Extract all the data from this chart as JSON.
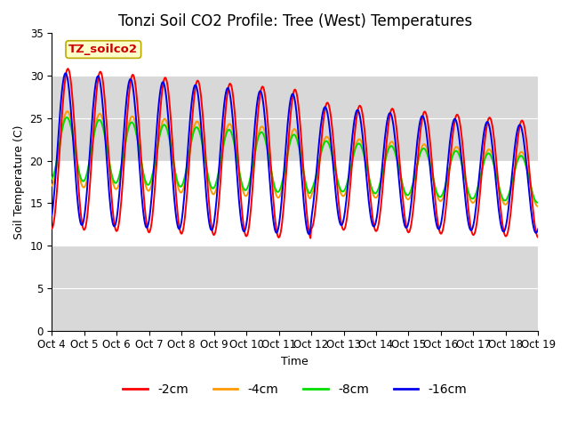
{
  "title": "Tonzi Soil CO2 Profile: Tree (West) Temperatures",
  "xlabel": "Time",
  "ylabel": "Soil Temperature (C)",
  "ylim": [
    0,
    35
  ],
  "xlim": [
    0,
    15
  ],
  "yticks": [
    0,
    5,
    10,
    15,
    20,
    25,
    30,
    35
  ],
  "xtick_labels": [
    "Oct 4",
    "Oct 5",
    "Oct 6",
    "Oct 7",
    "Oct 8",
    "Oct 9",
    "Oct 10",
    "Oct 11",
    "Oct 12",
    "Oct 13",
    "Oct 14",
    "Oct 15",
    "Oct 16",
    "Oct 17",
    "Oct 18",
    "Oct 19"
  ],
  "annotation_label": "TZ_soilco2",
  "annotation_color": "#cc0000",
  "annotation_bg": "#ffffcc",
  "annotation_border": "#bbaa00",
  "series_colors": [
    "#ff0000",
    "#ff9900",
    "#00dd00",
    "#0000ee"
  ],
  "series_labels": [
    "-2cm",
    "-4cm",
    "-8cm",
    "-16cm"
  ],
  "band_color": "#d8d8d8",
  "title_fontsize": 12,
  "label_fontsize": 9,
  "tick_fontsize": 8.5,
  "legend_fontsize": 10
}
